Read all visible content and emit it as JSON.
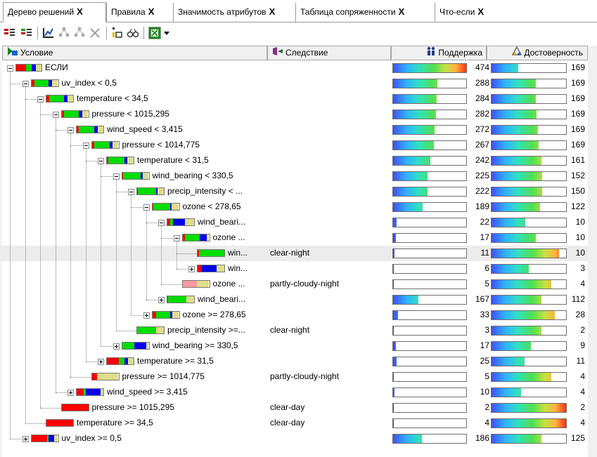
{
  "tabs": [
    {
      "label": "Дерево решений",
      "active": true
    },
    {
      "label": "Правила",
      "active": false
    },
    {
      "label": "Значимость атрибутов",
      "active": false
    },
    {
      "label": "Таблица сопряженности",
      "active": false
    },
    {
      "label": "Что-если",
      "active": false
    }
  ],
  "tab_close_glyph": "X",
  "toolbar": {
    "icons": [
      "expand-all-icon",
      "collapse-all-icon",
      "chart-icon",
      "tree-icon",
      "tree-filter-icon",
      "delete-icon",
      "pattern-icon",
      "find-icon",
      "excel-export-icon",
      "dropdown-arrow-icon"
    ]
  },
  "columns": {
    "condition": "Условие",
    "consequence": "Следствие",
    "support": "Поддержка",
    "confidence": "Достоверность"
  },
  "colors": {
    "red": "#ff0000",
    "green": "#00dd00",
    "blue": "#0000ee",
    "khaki": "#dede8a",
    "pink": "#ff9aa0"
  },
  "rows": [
    {
      "level": 0,
      "toggle": "minus",
      "text": "ЕСЛИ",
      "class_bar": [
        [
          "red",
          0.4
        ],
        [
          "green",
          0.22
        ],
        [
          "blue",
          0.16
        ],
        [
          "khaki",
          0.22
        ]
      ],
      "consequence": "",
      "support": "474",
      "support_fill": 1.0,
      "confidence": "169",
      "confidence_fill": 0.36
    },
    {
      "level": 1,
      "toggle": "minus",
      "text": "uv_index < 0,5",
      "class_bar": [
        [
          "red",
          0.12
        ],
        [
          "green",
          0.52
        ],
        [
          "blue",
          0.14
        ],
        [
          "khaki",
          0.22
        ]
      ],
      "consequence": "",
      "support": "288",
      "support_fill": 0.61,
      "confidence": "169",
      "confidence_fill": 0.59
    },
    {
      "level": 2,
      "toggle": "minus",
      "text": "temperature < 34,5",
      "class_bar": [
        [
          "red",
          0.1
        ],
        [
          "green",
          0.55
        ],
        [
          "blue",
          0.13
        ],
        [
          "khaki",
          0.22
        ]
      ],
      "consequence": "",
      "support": "284",
      "support_fill": 0.6,
      "confidence": "169",
      "confidence_fill": 0.59
    },
    {
      "level": 3,
      "toggle": "minus",
      "text": "pressure < 1015,295",
      "class_bar": [
        [
          "red",
          0.1
        ],
        [
          "green",
          0.55
        ],
        [
          "blue",
          0.13
        ],
        [
          "khaki",
          0.22
        ]
      ],
      "consequence": "",
      "support": "282",
      "support_fill": 0.59,
      "confidence": "169",
      "confidence_fill": 0.6
    },
    {
      "level": 4,
      "toggle": "minus",
      "text": "wind_speed < 3,415",
      "class_bar": [
        [
          "red",
          0.08
        ],
        [
          "green",
          0.57
        ],
        [
          "blue",
          0.13
        ],
        [
          "khaki",
          0.22
        ]
      ],
      "consequence": "",
      "support": "272",
      "support_fill": 0.57,
      "confidence": "169",
      "confidence_fill": 0.62
    },
    {
      "level": 5,
      "toggle": "minus",
      "text": "pressure < 1014,775",
      "class_bar": [
        [
          "red",
          0.08
        ],
        [
          "green",
          0.6
        ],
        [
          "blue",
          0.1
        ],
        [
          "khaki",
          0.22
        ]
      ],
      "consequence": "",
      "support": "267",
      "support_fill": 0.56,
      "confidence": "169",
      "confidence_fill": 0.63
    },
    {
      "level": 6,
      "toggle": "minus",
      "text": "temperature < 31,5",
      "class_bar": [
        [
          "red",
          0.04
        ],
        [
          "green",
          0.63
        ],
        [
          "blue",
          0.1
        ],
        [
          "khaki",
          0.23
        ]
      ],
      "consequence": "",
      "support": "242",
      "support_fill": 0.51,
      "confidence": "161",
      "confidence_fill": 0.67
    },
    {
      "level": 7,
      "toggle": "minus",
      "text": "wind_bearing < 330,5",
      "class_bar": [
        [
          "red",
          0.04
        ],
        [
          "green",
          0.66
        ],
        [
          "blue",
          0.07
        ],
        [
          "khaki",
          0.23
        ]
      ],
      "consequence": "",
      "support": "225",
      "support_fill": 0.47,
      "confidence": "152",
      "confidence_fill": 0.68
    },
    {
      "level": 8,
      "toggle": "minus",
      "text": "precip_intensity < ...",
      "class_bar": [
        [
          "red",
          0.03
        ],
        [
          "green",
          0.67
        ],
        [
          "blue",
          0.07
        ],
        [
          "khaki",
          0.23
        ]
      ],
      "consequence": "",
      "support": "222",
      "support_fill": 0.47,
      "confidence": "150",
      "confidence_fill": 0.68
    },
    {
      "level": 9,
      "toggle": "minus",
      "text": "ozone < 278,65",
      "class_bar": [
        [
          "red",
          0.04
        ],
        [
          "green",
          0.64
        ],
        [
          "blue",
          0.04
        ],
        [
          "khaki",
          0.28
        ]
      ],
      "consequence": "",
      "support": "189",
      "support_fill": 0.4,
      "confidence": "122",
      "confidence_fill": 0.65
    },
    {
      "level": 10,
      "toggle": "minus",
      "text": "wind_beari...",
      "class_bar": [
        [
          "red",
          0.1
        ],
        [
          "green",
          0.1
        ],
        [
          "blue",
          0.45
        ],
        [
          "khaki",
          0.35
        ]
      ],
      "consequence": "",
      "support": "22",
      "support_fill": 0.05,
      "confidence": "10",
      "confidence_fill": 0.45
    },
    {
      "level": 11,
      "toggle": "minus",
      "text": "ozone ...",
      "class_bar": [
        [
          "red",
          0.1
        ],
        [
          "green",
          0.55
        ],
        [
          "blue",
          0.25
        ],
        [
          "khaki",
          0.1
        ]
      ],
      "consequence": "",
      "support": "17",
      "support_fill": 0.04,
      "confidence": "10",
      "confidence_fill": 0.59
    },
    {
      "level": 12,
      "toggle": "none",
      "text": "win...",
      "class_bar": [
        [
          "red",
          0.04
        ],
        [
          "green",
          0.96
        ]
      ],
      "consequence": "clear-night",
      "support": "11",
      "support_fill": 0.02,
      "confidence": "10",
      "confidence_fill": 0.91,
      "selected": true
    },
    {
      "level": 12,
      "toggle": "plus",
      "text": "win...",
      "class_bar": [
        [
          "red",
          0.15
        ],
        [
          "blue",
          0.55
        ],
        [
          "khaki",
          0.3
        ]
      ],
      "consequence": "",
      "support": "6",
      "support_fill": 0.01,
      "confidence": "3",
      "confidence_fill": 0.5
    },
    {
      "level": 11,
      "toggle": "none",
      "text": "ozone ...",
      "class_bar": [
        [
          "pink",
          0.55
        ],
        [
          "khaki",
          0.45
        ]
      ],
      "consequence": "partly-cloudy-night",
      "support": "5",
      "support_fill": 0.01,
      "confidence": "4",
      "confidence_fill": 0.8
    },
    {
      "level": 10,
      "toggle": "plus",
      "text": "wind_beari...",
      "class_bar": [
        [
          "red",
          0.03
        ],
        [
          "green",
          0.67
        ],
        [
          "khaki",
          0.3
        ]
      ],
      "consequence": "",
      "support": "167",
      "support_fill": 0.35,
      "confidence": "112",
      "confidence_fill": 0.67
    },
    {
      "level": 9,
      "toggle": "plus",
      "text": "ozone >= 278,65",
      "class_bar": [
        [
          "red",
          0.15
        ],
        [
          "green",
          0.52
        ],
        [
          "blue",
          0.08
        ],
        [
          "khaki",
          0.25
        ]
      ],
      "consequence": "",
      "support": "33",
      "support_fill": 0.07,
      "confidence": "28",
      "confidence_fill": 0.85
    },
    {
      "level": 8,
      "toggle": "none",
      "text": "precip_intensity >=...",
      "class_bar": [
        [
          "green",
          0.7
        ],
        [
          "khaki",
          0.3
        ]
      ],
      "consequence": "clear-night",
      "support": "3",
      "support_fill": 0.01,
      "confidence": "2",
      "confidence_fill": 0.67
    },
    {
      "level": 7,
      "toggle": "plus",
      "text": "wind_bearing >= 330,5",
      "class_bar": [
        [
          "green",
          0.45
        ],
        [
          "blue",
          0.45
        ],
        [
          "khaki",
          0.1
        ]
      ],
      "consequence": "",
      "support": "17",
      "support_fill": 0.04,
      "confidence": "9",
      "confidence_fill": 0.53
    },
    {
      "level": 6,
      "toggle": "plus",
      "text": "temperature >= 31,5",
      "class_bar": [
        [
          "red",
          0.45
        ],
        [
          "green",
          0.2
        ],
        [
          "blue",
          0.15
        ],
        [
          "khaki",
          0.2
        ]
      ],
      "consequence": "",
      "support": "25",
      "support_fill": 0.05,
      "confidence": "11",
      "confidence_fill": 0.44
    },
    {
      "level": 5,
      "toggle": "none",
      "text": "pressure >= 1014,775",
      "class_bar": [
        [
          "red",
          0.2
        ],
        [
          "khaki",
          0.8
        ]
      ],
      "consequence": "partly-cloudy-night",
      "support": "5",
      "support_fill": 0.01,
      "confidence": "4",
      "confidence_fill": 0.8
    },
    {
      "level": 4,
      "toggle": "plus",
      "text": "wind_speed >= 3,415",
      "class_bar": [
        [
          "red",
          0.25
        ],
        [
          "green",
          0.1
        ],
        [
          "blue",
          0.55
        ],
        [
          "khaki",
          0.1
        ]
      ],
      "consequence": "",
      "support": "10",
      "support_fill": 0.02,
      "confidence": "4",
      "confidence_fill": 0.4
    },
    {
      "level": 3,
      "toggle": "none",
      "text": "pressure >= 1015,295",
      "class_bar": [
        [
          "red",
          1.0
        ]
      ],
      "consequence": "clear-day",
      "support": "2",
      "support_fill": 0.0,
      "confidence": "2",
      "confidence_fill": 1.0
    },
    {
      "level": 2,
      "toggle": "none",
      "text": "temperature >= 34,5",
      "class_bar": [
        [
          "red",
          1.0
        ]
      ],
      "consequence": "clear-day",
      "support": "4",
      "support_fill": 0.01,
      "confidence": "4",
      "confidence_fill": 1.0
    },
    {
      "level": 1,
      "toggle": "plus",
      "text": "uv_index >= 0,5",
      "class_bar": [
        [
          "red",
          0.6
        ],
        [
          "green",
          0.05
        ],
        [
          "blue",
          0.2
        ],
        [
          "khaki",
          0.15
        ]
      ],
      "consequence": "",
      "support": "186",
      "support_fill": 0.39,
      "confidence": "125",
      "confidence_fill": 0.67
    }
  ]
}
